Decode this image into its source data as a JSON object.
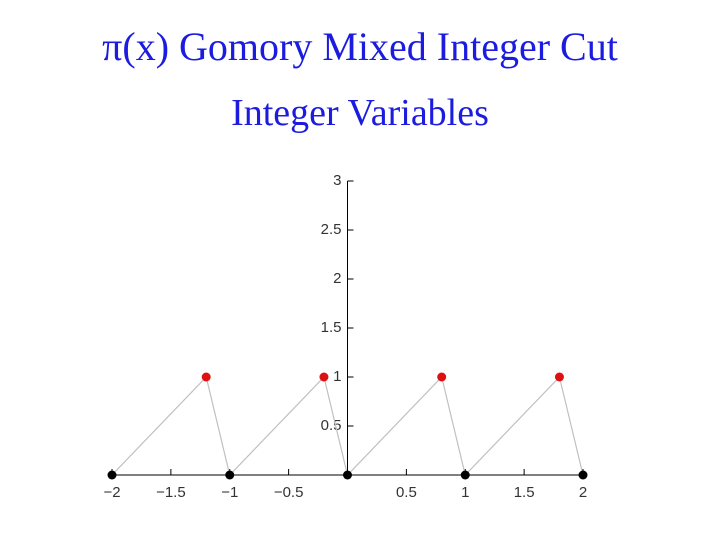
{
  "chart_data": {
    "type": "line",
    "title": "π(x) Gomory Mixed Integer Cut",
    "subtitle": "Integer Variables",
    "x": [
      -2,
      -1.2,
      -1,
      -0.2,
      0,
      0.8,
      1,
      1.8,
      2
    ],
    "values": [
      0,
      1,
      0,
      1,
      0,
      1,
      0,
      1,
      0
    ],
    "color": "#c0c0c0",
    "marker_colors": [
      "#000000",
      "#dd1111",
      "#000000",
      "#dd1111",
      "#000000",
      "#dd1111",
      "#000000",
      "#dd1111",
      "#000000"
    ],
    "xlim": [
      -2,
      2
    ],
    "ylim": [
      0,
      3
    ],
    "xticks": [
      {
        "value": -2,
        "label": "−2"
      },
      {
        "value": -1.5,
        "label": "−1.5"
      },
      {
        "value": -1,
        "label": "−1"
      },
      {
        "value": -0.5,
        "label": "−0.5"
      },
      0.5,
      1,
      1.5,
      2
    ],
    "yticks": [
      0.5,
      1,
      1.5,
      2,
      2.5,
      3
    ]
  }
}
